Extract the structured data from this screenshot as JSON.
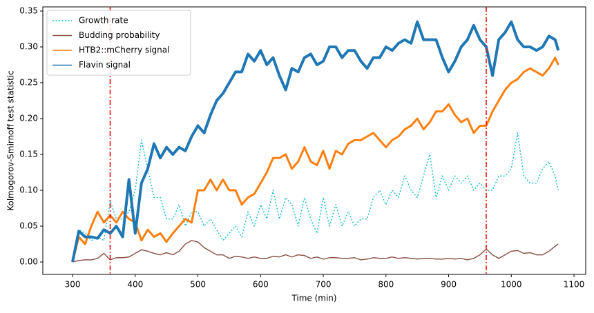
{
  "chart_data": {
    "type": "line",
    "xlabel": "Time (min)",
    "ylabel": "Kolmogorov-Smirnoff test statistic",
    "x": [
      300,
      310,
      320,
      330,
      340,
      350,
      360,
      370,
      380,
      390,
      400,
      410,
      420,
      430,
      440,
      450,
      460,
      470,
      480,
      490,
      500,
      510,
      520,
      530,
      540,
      550,
      560,
      570,
      580,
      590,
      600,
      610,
      620,
      630,
      640,
      650,
      660,
      670,
      680,
      690,
      700,
      710,
      720,
      730,
      740,
      750,
      760,
      770,
      780,
      790,
      800,
      810,
      820,
      830,
      840,
      850,
      860,
      870,
      880,
      890,
      900,
      910,
      920,
      930,
      940,
      950,
      960,
      970,
      980,
      990,
      1000,
      1010,
      1020,
      1030,
      1040,
      1050,
      1060,
      1070,
      1075
    ],
    "series": [
      {
        "name": "Growth rate",
        "color": "#17becf",
        "dash": "dotted",
        "linewidth": 1.5,
        "values": [
          0,
          0.045,
          0.04,
          0.03,
          0.035,
          0.03,
          0.085,
          0.06,
          0.06,
          0.07,
          0.1,
          0.17,
          0.13,
          0.09,
          0.09,
          0.06,
          0.06,
          0.08,
          0.05,
          0.07,
          0.07,
          0.05,
          0.06,
          0.045,
          0.03,
          0.04,
          0.05,
          0.035,
          0.07,
          0.05,
          0.08,
          0.06,
          0.1,
          0.06,
          0.09,
          0.08,
          0.05,
          0.09,
          0.06,
          0.04,
          0.09,
          0.05,
          0.08,
          0.05,
          0.07,
          0.05,
          0.06,
          0.06,
          0.09,
          0.1,
          0.08,
          0.1,
          0.09,
          0.12,
          0.1,
          0.09,
          0.12,
          0.15,
          0.09,
          0.12,
          0.1,
          0.12,
          0.11,
          0.12,
          0.1,
          0.11,
          0.1,
          0.1,
          0.12,
          0.12,
          0.13,
          0.18,
          0.12,
          0.11,
          0.11,
          0.13,
          0.14,
          0.12,
          0.1
        ]
      },
      {
        "name": "Budding probability",
        "color": "#8c564b",
        "dash": "solid",
        "linewidth": 1.5,
        "values": [
          0,
          0.002,
          0.003,
          0.003,
          0.005,
          0.012,
          0.003,
          0.006,
          0.006,
          0.007,
          0.012,
          0.017,
          0.015,
          0.012,
          0.01,
          0.013,
          0.01,
          0.015,
          0.025,
          0.03,
          0.028,
          0.02,
          0.015,
          0.01,
          0.01,
          0.005,
          0.008,
          0.007,
          0.005,
          0.007,
          0.005,
          0.005,
          0.008,
          0.007,
          0.01,
          0.007,
          0.01,
          0.009,
          0.005,
          0.007,
          0.004,
          0.006,
          0.006,
          0.005,
          0.005,
          0.006,
          0.003,
          0.004,
          0.006,
          0.005,
          0.005,
          0.007,
          0.005,
          0.006,
          0.005,
          0.004,
          0.005,
          0.005,
          0.004,
          0.004,
          0.005,
          0.004,
          0.005,
          0.003,
          0.005,
          0.01,
          0.018,
          0.01,
          0.005,
          0.01,
          0.015,
          0.016,
          0.012,
          0.013,
          0.01,
          0.01,
          0.015,
          0.022,
          0.025
        ]
      },
      {
        "name": "HTB2::mCherry signal",
        "color": "#ff7f0e",
        "dash": "solid",
        "linewidth": 3,
        "values": [
          0,
          0.035,
          0.025,
          0.05,
          0.07,
          0.055,
          0.065,
          0.055,
          0.07,
          0.06,
          0.055,
          0.03,
          0.045,
          0.035,
          0.04,
          0.028,
          0.04,
          0.05,
          0.06,
          0.055,
          0.1,
          0.1,
          0.115,
          0.1,
          0.115,
          0.1,
          0.1,
          0.08,
          0.09,
          0.095,
          0.11,
          0.125,
          0.145,
          0.145,
          0.15,
          0.13,
          0.14,
          0.16,
          0.14,
          0.135,
          0.155,
          0.13,
          0.155,
          0.15,
          0.165,
          0.17,
          0.17,
          0.175,
          0.18,
          0.17,
          0.16,
          0.17,
          0.175,
          0.185,
          0.19,
          0.2,
          0.185,
          0.195,
          0.21,
          0.21,
          0.22,
          0.205,
          0.195,
          0.2,
          0.18,
          0.19,
          0.19,
          0.21,
          0.225,
          0.24,
          0.25,
          0.255,
          0.265,
          0.27,
          0.265,
          0.26,
          0.27,
          0.285,
          0.275
        ]
      },
      {
        "name": "Flavin signal",
        "color": "#1f77b4",
        "dash": "solid",
        "linewidth": 4,
        "values": [
          0,
          0.043,
          0.035,
          0.035,
          0.033,
          0.045,
          0.04,
          0.05,
          0.035,
          0.115,
          0.04,
          0.11,
          0.13,
          0.165,
          0.145,
          0.16,
          0.15,
          0.16,
          0.155,
          0.175,
          0.19,
          0.18,
          0.205,
          0.225,
          0.235,
          0.25,
          0.265,
          0.265,
          0.29,
          0.28,
          0.295,
          0.275,
          0.285,
          0.26,
          0.24,
          0.27,
          0.265,
          0.285,
          0.29,
          0.275,
          0.28,
          0.3,
          0.3,
          0.285,
          0.295,
          0.295,
          0.28,
          0.27,
          0.285,
          0.285,
          0.3,
          0.295,
          0.305,
          0.31,
          0.305,
          0.335,
          0.31,
          0.31,
          0.31,
          0.285,
          0.265,
          0.28,
          0.3,
          0.31,
          0.33,
          0.31,
          0.3,
          0.26,
          0.31,
          0.32,
          0.335,
          0.31,
          0.3,
          0.3,
          0.295,
          0.3,
          0.315,
          0.31,
          0.295
        ]
      }
    ],
    "vlines": [
      360,
      960
    ],
    "vline_color": "#ff0000",
    "xlim": [
      252.6,
      1118.7
    ],
    "xticks": [
      300,
      400,
      500,
      600,
      700,
      800,
      900,
      1000,
      1100
    ],
    "ylim": [
      -0.0173,
      0.3558
    ],
    "yticks": [
      {
        "value": 0,
        "label": "0.00"
      },
      {
        "value": 0.05,
        "label": "0.05"
      },
      {
        "value": 0.1,
        "label": "0.10"
      },
      {
        "value": 0.15,
        "label": "0.15"
      },
      {
        "value": 0.2,
        "label": "0.20"
      },
      {
        "value": 0.25,
        "label": "0.25"
      },
      {
        "value": 0.3,
        "label": "0.30"
      },
      {
        "value": 0.35,
        "label": "0.35"
      }
    ],
    "legend": "upper left"
  }
}
